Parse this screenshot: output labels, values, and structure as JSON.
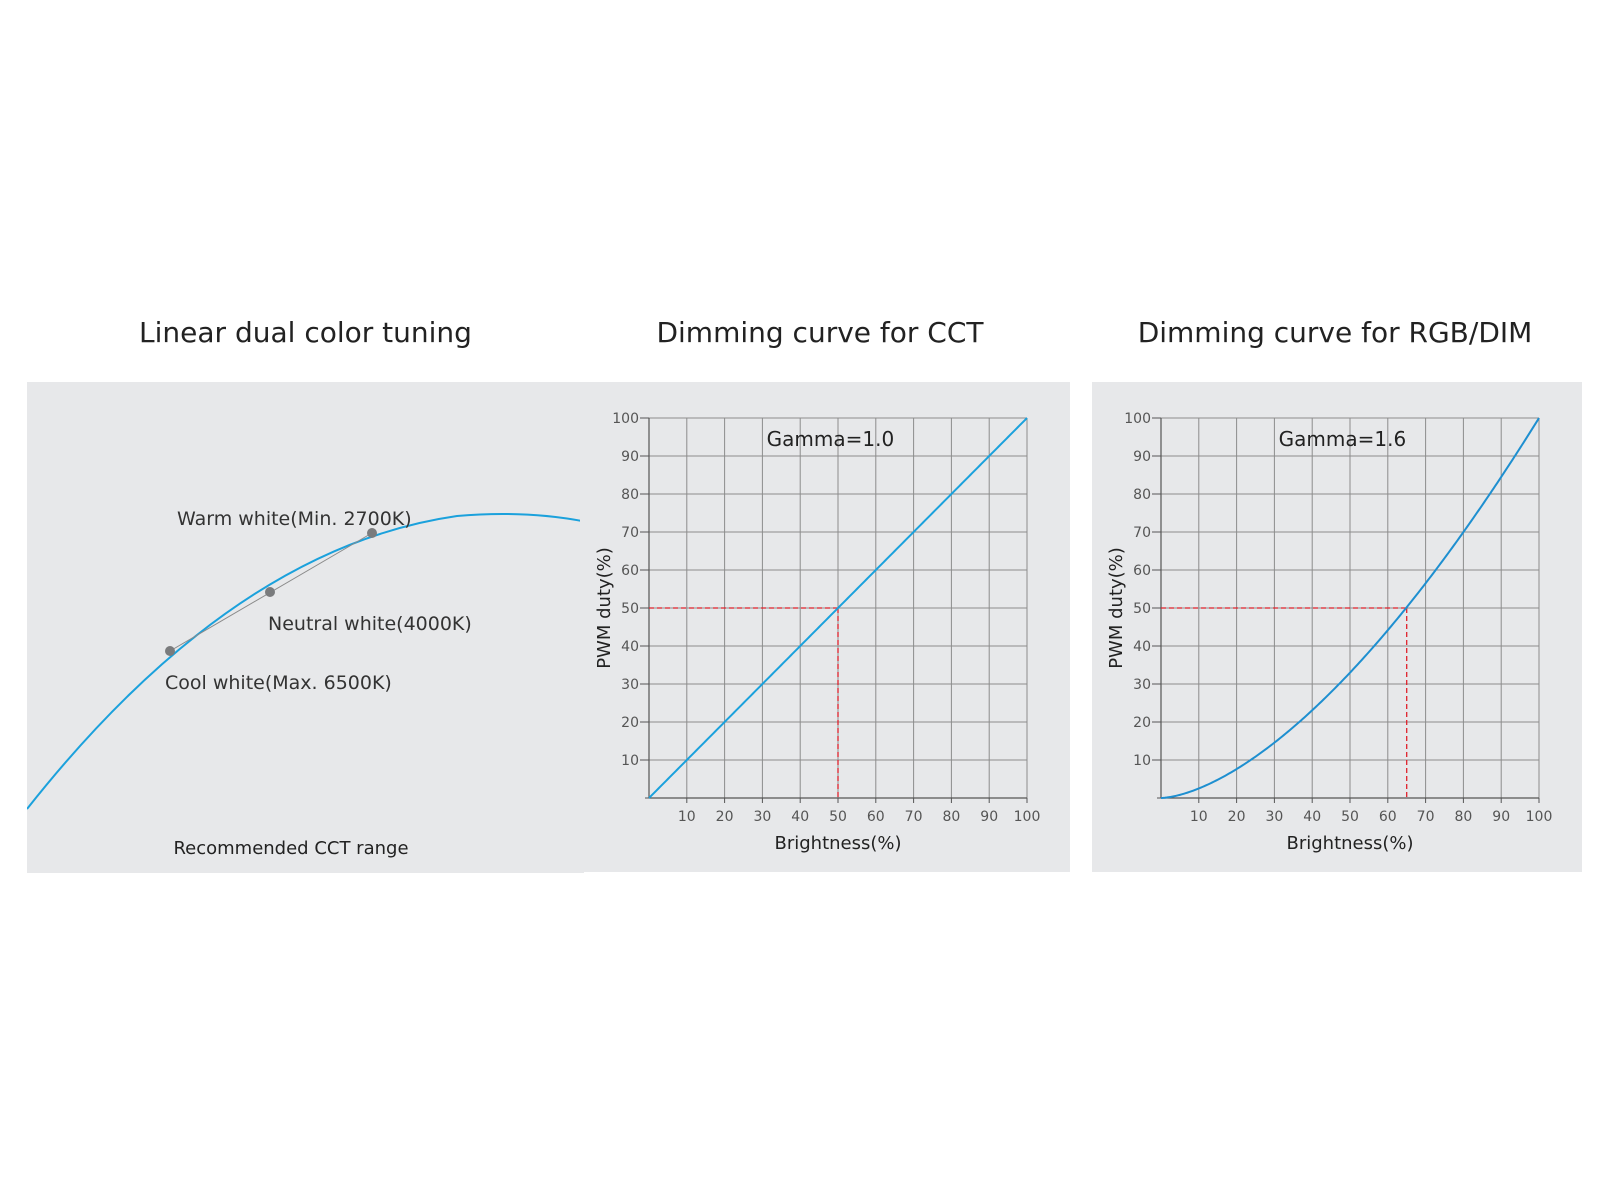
{
  "colors": {
    "panel_bg": "#e7e8ea",
    "curve": "#1ba1dc",
    "curve_dark": "#1e8fd0",
    "grid": "#8c8c8c",
    "reference": "#e0202b",
    "marker": "#7a7b7d",
    "text": "#222222"
  },
  "chart_data": [
    {
      "type": "line",
      "title": "Linear dual color tuning",
      "caption": "Recommended CCT range",
      "points": [
        {
          "name": "Warm white",
          "label": "Warm white(Min. 2700K)",
          "cct_k": 2700
        },
        {
          "name": "Neutral white",
          "label": "Neutral white(4000K)",
          "cct_k": 4000
        },
        {
          "name": "Cool white",
          "label": "Cool white(Max. 6500K)",
          "cct_k": 6500
        }
      ],
      "grid": false
    },
    {
      "type": "line",
      "title": "Dimming curve for CCT",
      "annotation": "Gamma=1.0",
      "gamma": 1.0,
      "xlabel": "Brightness(%)",
      "ylabel": "PWM duty(%)",
      "xlim": [
        0,
        100
      ],
      "ylim": [
        0,
        100
      ],
      "xticks": [
        10,
        20,
        30,
        40,
        50,
        60,
        70,
        80,
        90,
        100
      ],
      "yticks": [
        10,
        20,
        30,
        40,
        50,
        60,
        70,
        80,
        90,
        100
      ],
      "reference_point": {
        "x": 50,
        "y": 50
      },
      "grid": true
    },
    {
      "type": "line",
      "title": "Dimming curve for RGB/DIM",
      "annotation": "Gamma=1.6",
      "gamma": 1.6,
      "xlabel": "Brightness(%)",
      "ylabel": "PWM duty(%)",
      "xlim": [
        0,
        100
      ],
      "ylim": [
        0,
        100
      ],
      "xticks": [
        10,
        20,
        30,
        40,
        50,
        60,
        70,
        80,
        90,
        100
      ],
      "yticks": [
        10,
        20,
        30,
        40,
        50,
        60,
        70,
        80,
        90,
        100
      ],
      "reference_point": {
        "x": 65,
        "y": 50
      },
      "grid": true
    }
  ]
}
